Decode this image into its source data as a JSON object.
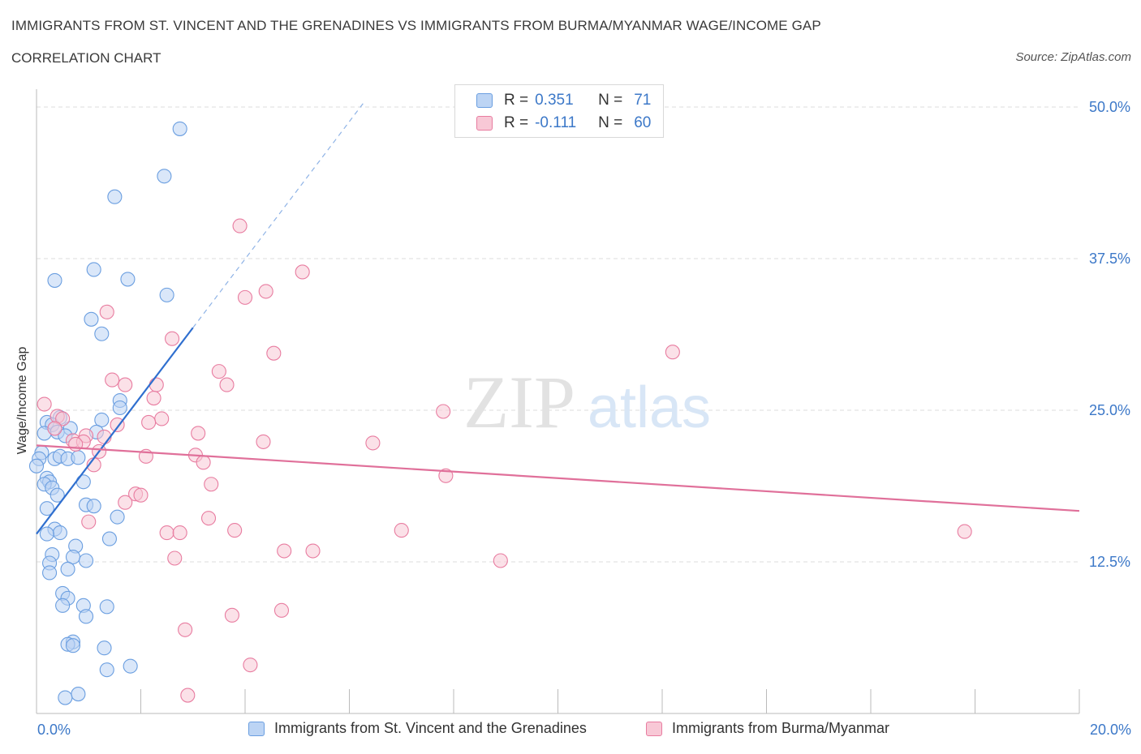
{
  "chart_data": {
    "type": "scatter",
    "title": "IMMIGRANTS FROM ST. VINCENT AND THE GRENADINES VS IMMIGRANTS FROM BURMA/MYANMAR WAGE/INCOME GAP",
    "subtitle": "CORRELATION CHART",
    "source": "Source: ZipAtlas.com",
    "xlabel": "",
    "ylabel": "Wage/Income Gap",
    "xlim": [
      0,
      20
    ],
    "ylim": [
      0,
      50
    ],
    "x_tick_labels": [
      "0.0%",
      "20.0%"
    ],
    "y_ticks": [
      12.5,
      25.0,
      37.5,
      50.0
    ],
    "y_tick_labels": [
      "12.5%",
      "25.0%",
      "37.5%",
      "50.0%"
    ],
    "watermark": "ZIPatlas",
    "legend_top": [
      {
        "r_label": "R =",
        "r_value": "0.351",
        "n_label": "N =",
        "n_value": "71"
      },
      {
        "r_label": "R =",
        "r_value": "-0.111",
        "n_label": "N =",
        "n_value": "60"
      }
    ],
    "series": [
      {
        "name": "Immigrants from St. Vincent and the Grenadines",
        "color": "#6a9ee0",
        "fill": "#bcd4f4",
        "trend": {
          "x0": 0.0,
          "y0": 14.8,
          "x1": 3.0,
          "y1": 31.8,
          "dash_to_x": 6.3,
          "dash_to_y": 50.5
        },
        "points": [
          [
            2.75,
            48.2
          ],
          [
            2.45,
            44.3
          ],
          [
            1.5,
            42.6
          ],
          [
            1.1,
            36.6
          ],
          [
            1.75,
            35.8
          ],
          [
            0.35,
            35.7
          ],
          [
            2.5,
            34.5
          ],
          [
            1.05,
            32.5
          ],
          [
            1.25,
            31.3
          ],
          [
            1.6,
            25.8
          ],
          [
            1.6,
            25.2
          ],
          [
            1.25,
            24.2
          ],
          [
            0.45,
            24.4
          ],
          [
            0.2,
            24.0
          ],
          [
            0.3,
            23.8
          ],
          [
            0.65,
            23.5
          ],
          [
            0.15,
            23.1
          ],
          [
            0.4,
            23.2
          ],
          [
            1.15,
            23.2
          ],
          [
            0.55,
            22.9
          ],
          [
            0.1,
            21.5
          ],
          [
            0.05,
            21.0
          ],
          [
            0.35,
            21.0
          ],
          [
            0.45,
            21.2
          ],
          [
            0.6,
            21.0
          ],
          [
            0.8,
            21.1
          ],
          [
            0.0,
            20.4
          ],
          [
            0.2,
            19.4
          ],
          [
            0.25,
            19.1
          ],
          [
            0.15,
            18.9
          ],
          [
            0.3,
            18.6
          ],
          [
            0.9,
            19.1
          ],
          [
            0.4,
            18.0
          ],
          [
            0.95,
            17.2
          ],
          [
            1.1,
            17.1
          ],
          [
            0.2,
            16.9
          ],
          [
            1.55,
            16.2
          ],
          [
            0.35,
            15.2
          ],
          [
            0.45,
            14.9
          ],
          [
            0.2,
            14.8
          ],
          [
            1.4,
            14.4
          ],
          [
            0.75,
            13.8
          ],
          [
            0.3,
            13.1
          ],
          [
            0.7,
            12.9
          ],
          [
            0.95,
            12.6
          ],
          [
            0.25,
            12.4
          ],
          [
            0.6,
            11.9
          ],
          [
            0.25,
            11.6
          ],
          [
            0.5,
            9.9
          ],
          [
            0.6,
            9.5
          ],
          [
            0.5,
            8.9
          ],
          [
            0.9,
            8.9
          ],
          [
            1.35,
            8.8
          ],
          [
            0.95,
            8.0
          ],
          [
            0.7,
            5.9
          ],
          [
            0.6,
            5.7
          ],
          [
            0.7,
            5.6
          ],
          [
            1.3,
            5.4
          ],
          [
            1.8,
            3.9
          ],
          [
            1.35,
            3.6
          ],
          [
            0.8,
            1.6
          ],
          [
            0.55,
            1.3
          ]
        ]
      },
      {
        "name": "Immigrants from Burma/Myanmar",
        "color": "#e87ca0",
        "fill": "#f8c8d6",
        "trend": {
          "x0": 0.0,
          "y0": 22.1,
          "x1": 20.0,
          "y1": 16.7
        },
        "points": [
          [
            3.9,
            40.2
          ],
          [
            5.1,
            36.4
          ],
          [
            4.4,
            34.8
          ],
          [
            4.0,
            34.3
          ],
          [
            1.35,
            33.1
          ],
          [
            2.6,
            30.9
          ],
          [
            12.2,
            29.8
          ],
          [
            4.55,
            29.7
          ],
          [
            3.5,
            28.2
          ],
          [
            1.45,
            27.5
          ],
          [
            1.7,
            27.1
          ],
          [
            3.65,
            27.1
          ],
          [
            2.3,
            27.1
          ],
          [
            2.25,
            26.0
          ],
          [
            0.15,
            25.5
          ],
          [
            7.8,
            24.9
          ],
          [
            0.4,
            24.5
          ],
          [
            0.5,
            24.3
          ],
          [
            2.4,
            24.3
          ],
          [
            2.15,
            24.0
          ],
          [
            1.55,
            23.8
          ],
          [
            0.35,
            23.5
          ],
          [
            3.1,
            23.1
          ],
          [
            0.95,
            22.9
          ],
          [
            1.3,
            22.8
          ],
          [
            0.7,
            22.5
          ],
          [
            0.9,
            22.4
          ],
          [
            0.75,
            22.2
          ],
          [
            4.35,
            22.4
          ],
          [
            6.45,
            22.3
          ],
          [
            1.2,
            21.6
          ],
          [
            3.05,
            21.3
          ],
          [
            2.1,
            21.2
          ],
          [
            3.2,
            20.7
          ],
          [
            1.1,
            20.5
          ],
          [
            7.85,
            19.6
          ],
          [
            3.35,
            18.9
          ],
          [
            1.9,
            18.1
          ],
          [
            2.0,
            18.0
          ],
          [
            1.7,
            17.4
          ],
          [
            3.3,
            16.1
          ],
          [
            1.0,
            15.8
          ],
          [
            3.8,
            15.1
          ],
          [
            7.0,
            15.1
          ],
          [
            17.8,
            15.0
          ],
          [
            2.5,
            14.9
          ],
          [
            2.75,
            14.9
          ],
          [
            4.75,
            13.4
          ],
          [
            5.3,
            13.4
          ],
          [
            2.65,
            12.8
          ],
          [
            8.9,
            12.6
          ],
          [
            4.7,
            8.5
          ],
          [
            3.75,
            8.1
          ],
          [
            2.85,
            6.9
          ],
          [
            4.1,
            4.0
          ],
          [
            2.9,
            1.5
          ]
        ]
      }
    ]
  }
}
